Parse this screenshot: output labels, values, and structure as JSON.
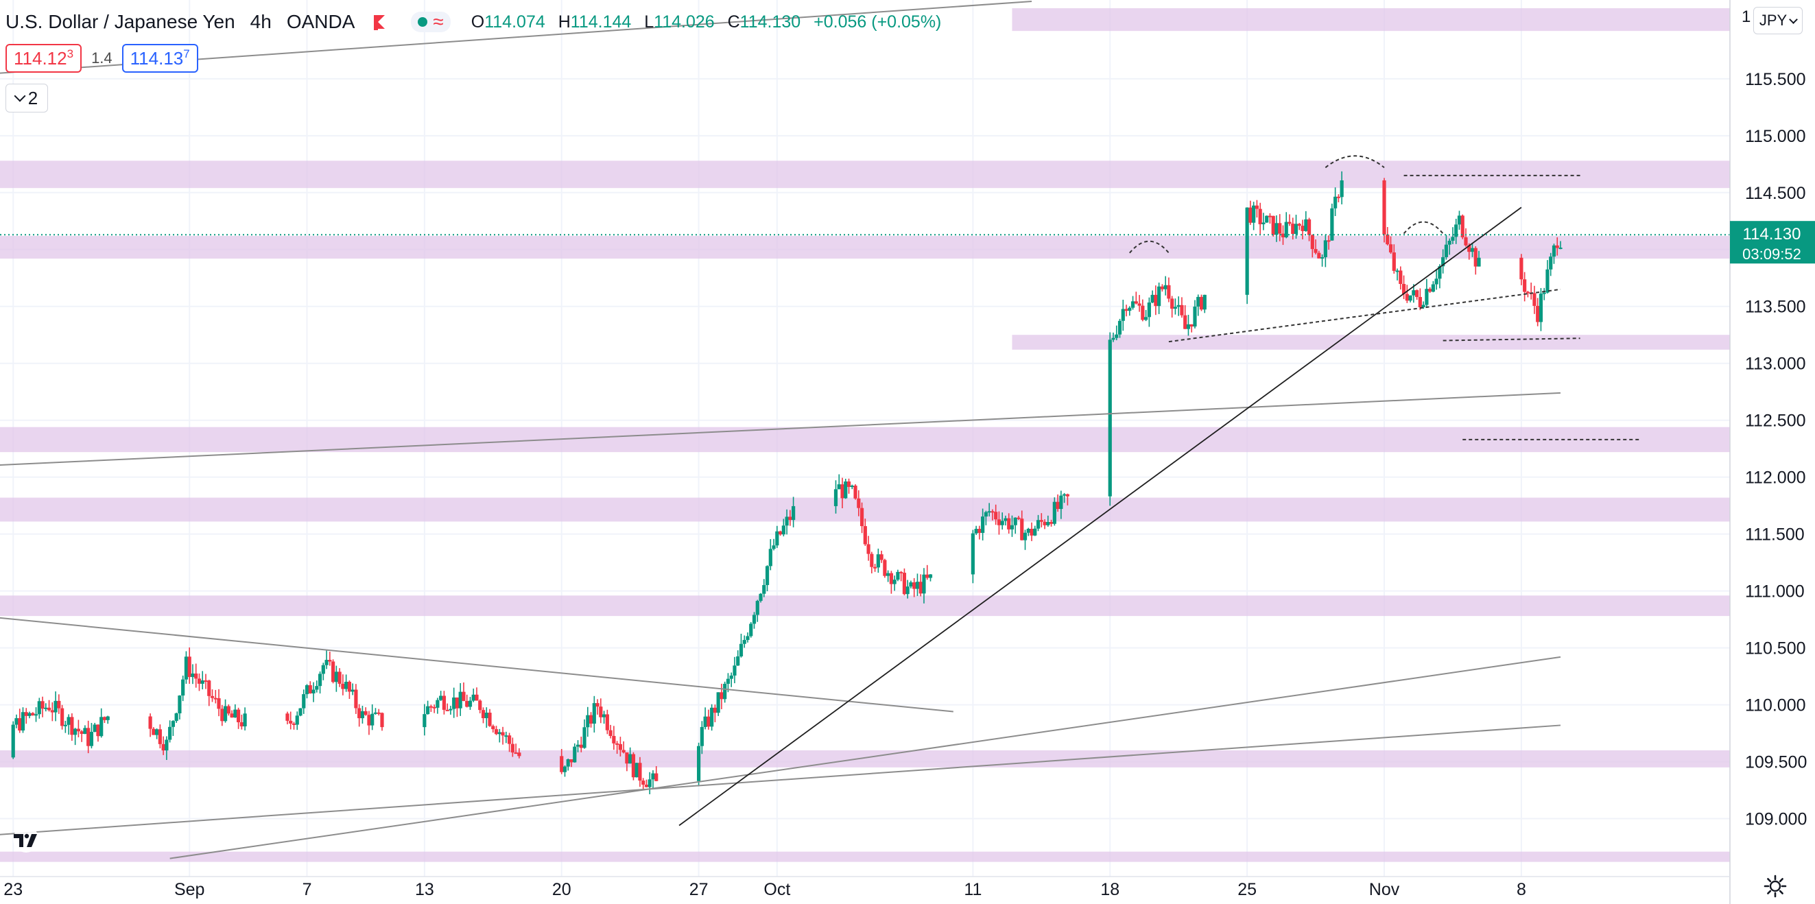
{
  "header": {
    "title": "U.S. Dollar / Japanese Yen",
    "interval": "4h",
    "source": "OANDA",
    "ohlc": {
      "o_label": "O",
      "o_value": "114.074",
      "h_label": "H",
      "h_value": "114.144",
      "l_label": "L",
      "l_value": "114.026",
      "c_label": "C",
      "c_value": "114.130",
      "change": "+0.056 (+0.05%)"
    }
  },
  "trade": {
    "sell_main": "114.12",
    "sell_sup": "3",
    "spread": "1.4",
    "buy_main": "114.13",
    "buy_sup": "7"
  },
  "collapse_count": "2",
  "currency_button": "JPY",
  "price_axis_top_label": "1",
  "colors": {
    "up": "#089981",
    "down": "#f23645",
    "zone": "#e1c7e9",
    "line": "#8c8c8c",
    "trend": "#1f1f1f",
    "badge": "#089981",
    "ohlc": "#089981"
  },
  "icons": {
    "flag": "flag-icon",
    "status": "status-dot-icon",
    "wave": "approx-icon",
    "logo": "tradingview-logo-icon",
    "settings": "gear-icon"
  },
  "chart_data": {
    "type": "candlestick",
    "symbol": "USDJPY",
    "timeframe": "4h",
    "x_tick_labels": [
      "23",
      "Sep",
      "7",
      "13",
      "20",
      "27",
      "Oct",
      "11",
      "18",
      "25",
      "Nov",
      "8"
    ],
    "x_tick_dates": [
      "2021-08-23",
      "2021-09-01",
      "2021-09-07",
      "2021-09-13",
      "2021-09-20",
      "2021-09-27",
      "2021-10-01",
      "2021-10-11",
      "2021-10-18",
      "2021-10-25",
      "2021-11-01",
      "2021-11-08"
    ],
    "x_range": [
      "2021-08-19",
      "2021-11-10"
    ],
    "y_range": [
      108.65,
      116.05
    ],
    "y_ticks": [
      109.0,
      109.5,
      110.0,
      110.5,
      111.0,
      111.5,
      112.0,
      112.5,
      113.0,
      113.5,
      114.0,
      114.5,
      115.0,
      115.5
    ],
    "y_tick_labels": [
      "109.000",
      "109.500",
      "110.000",
      "110.500",
      "111.000",
      "111.500",
      "112.000",
      "112.500",
      "113.000",
      "113.500",
      "114.000",
      "114.500",
      "115.000",
      "115.500"
    ],
    "last_price": "114.130",
    "countdown": "03:09:52",
    "path": [
      [
        "2021-08-19",
        109.7
      ],
      [
        "2021-08-20",
        110.05
      ],
      [
        "2021-08-21",
        109.45
      ],
      [
        "2021-08-23",
        109.8
      ],
      [
        "2021-08-25",
        110.0
      ],
      [
        "2021-08-27",
        109.7
      ],
      [
        "2021-08-29",
        110.1
      ],
      [
        "2021-08-31",
        109.65
      ],
      [
        "2021-09-01",
        110.35
      ],
      [
        "2021-09-03",
        109.9
      ],
      [
        "2021-09-06",
        109.75
      ],
      [
        "2021-09-08",
        110.35
      ],
      [
        "2021-09-09",
        110.2
      ],
      [
        "2021-09-10",
        109.9
      ],
      [
        "2021-09-12",
        109.8
      ],
      [
        "2021-09-14",
        110.05
      ],
      [
        "2021-09-16",
        110.0
      ],
      [
        "2021-09-18",
        109.55
      ],
      [
        "2021-09-20",
        109.3
      ],
      [
        "2021-09-22",
        110.0
      ],
      [
        "2021-09-24",
        109.4
      ],
      [
        "2021-09-26",
        109.2
      ],
      [
        "2021-09-27",
        109.65
      ],
      [
        "2021-09-29",
        110.3
      ],
      [
        "2021-10-01",
        111.4
      ],
      [
        "2021-10-03",
        112.0
      ],
      [
        "2021-10-05",
        111.85
      ],
      [
        "2021-10-06",
        111.3
      ],
      [
        "2021-10-08",
        111.0
      ],
      [
        "2021-10-10",
        111.2
      ],
      [
        "2021-10-12",
        111.7
      ],
      [
        "2021-10-14",
        111.5
      ],
      [
        "2021-10-16",
        111.8
      ],
      [
        "2021-10-17",
        112.2
      ],
      [
        "2021-10-18",
        113.1
      ],
      [
        "2021-10-19",
        113.55
      ],
      [
        "2021-10-20",
        113.45
      ],
      [
        "2021-10-21",
        113.7
      ],
      [
        "2021-10-22",
        113.3
      ],
      [
        "2021-10-23",
        113.6
      ],
      [
        "2021-10-25",
        114.35
      ],
      [
        "2021-10-27",
        114.15
      ],
      [
        "2021-10-28",
        114.25
      ],
      [
        "2021-10-29",
        113.9
      ],
      [
        "2021-10-30",
        114.65
      ],
      [
        "2021-11-01",
        114.2
      ],
      [
        "2021-11-02",
        113.65
      ],
      [
        "2021-11-03",
        113.55
      ],
      [
        "2021-11-04",
        113.85
      ],
      [
        "2021-11-05",
        114.25
      ],
      [
        "2021-11-06",
        113.85
      ],
      [
        "2021-11-07",
        113.55
      ],
      [
        "2021-11-08",
        113.8
      ],
      [
        "2021-11-09",
        113.45
      ],
      [
        "2021-11-10",
        114.1
      ]
    ],
    "zones": [
      {
        "from": 115.92,
        "to": 116.12,
        "x_from": "2021-10-13"
      },
      {
        "from": 114.54,
        "to": 114.78
      },
      {
        "from": 113.92,
        "to": 114.12
      },
      {
        "from": 113.12,
        "to": 113.25,
        "x_from": "2021-10-13"
      },
      {
        "from": 112.22,
        "to": 112.44
      },
      {
        "from": 111.61,
        "to": 111.82
      },
      {
        "from": 110.78,
        "to": 110.96
      },
      {
        "from": 109.45,
        "to": 109.6
      },
      {
        "from": 108.62,
        "to": 108.71
      }
    ],
    "lines": [
      {
        "style": "thin",
        "x1": "2021-08-19",
        "y1": 115.51,
        "x2": "2021-10-14",
        "y2": 116.18
      },
      {
        "style": "thin",
        "x1": "2021-08-19",
        "y1": 112.08,
        "x2": "2021-11-10",
        "y2": 112.74
      },
      {
        "style": "thin",
        "x1": "2021-08-19",
        "y1": 110.82,
        "x2": "2021-10-10",
        "y2": 109.94
      },
      {
        "style": "thin",
        "x1": "2021-08-19",
        "y1": 108.82,
        "x2": "2021-11-10",
        "y2": 109.82
      },
      {
        "style": "thin",
        "x1": "2021-08-31",
        "y1": 108.65,
        "x2": "2021-11-10",
        "y2": 110.42
      },
      {
        "style": "trend",
        "x1": "2021-09-26",
        "y1": 108.94,
        "x2": "2021-11-08",
        "y2": 114.37
      },
      {
        "style": "dash",
        "x1": "2021-10-21",
        "y1": 113.19,
        "x2": "2021-11-10",
        "y2": 113.65
      },
      {
        "style": "dash",
        "x1": "2021-11-04",
        "y1": 113.2,
        "x2": "2021-11-11",
        "y2": 113.22
      },
      {
        "style": "dash",
        "x1": "2021-11-05",
        "y1": 112.33,
        "x2": "2021-11-14",
        "y2": 112.33
      },
      {
        "style": "dash",
        "x1": "2021-11-02",
        "y1": 114.65,
        "x2": "2021-11-11",
        "y2": 114.65
      }
    ],
    "arcs": [
      {
        "x1": "2021-10-19",
        "x2": "2021-10-21",
        "y": 113.97
      },
      {
        "x1": "2021-10-29",
        "x2": "2021-11-01",
        "y": 114.72
      },
      {
        "x1": "2021-11-02",
        "x2": "2021-11-04",
        "y": 114.14
      }
    ]
  }
}
